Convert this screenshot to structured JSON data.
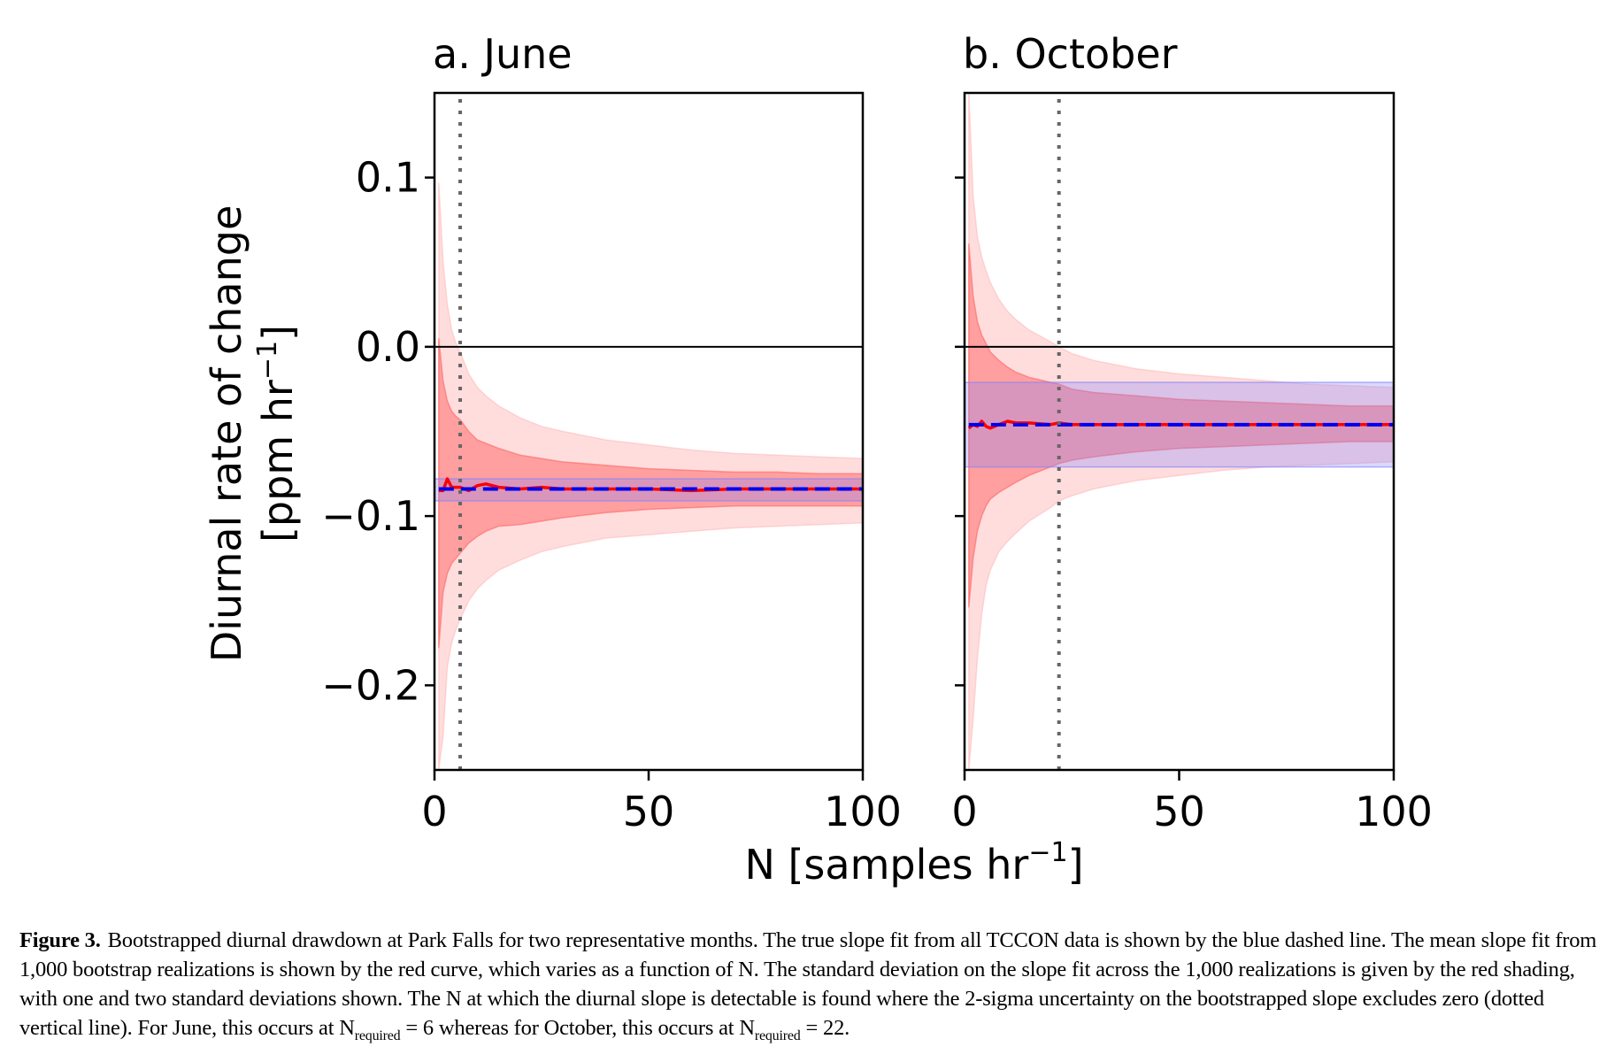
{
  "chart_data": [
    {
      "type": "line",
      "title": "a. June",
      "xlabel": "N [samples hr⁻¹]",
      "ylabel": "Diurnal rate of change [ppm hr⁻¹]",
      "xlim": [
        0,
        100
      ],
      "ylim": [
        -0.25,
        0.15
      ],
      "xticks": [
        0,
        50,
        100
      ],
      "yticks": [
        0.1,
        0.0,
        -0.1,
        -0.2
      ],
      "ytick_labels": [
        "0.1",
        "0.0",
        "−0.1",
        "−0.2"
      ],
      "show_ytick_labels": true,
      "zero_line": 0.0,
      "n_required": 6,
      "true_slope": -0.084,
      "true_slope_band": [
        -0.091,
        -0.078
      ],
      "x": [
        1,
        2,
        3,
        4,
        5,
        6,
        8,
        10,
        12,
        15,
        20,
        25,
        30,
        40,
        50,
        60,
        70,
        80,
        90,
        100
      ],
      "series": [
        {
          "name": "mean bootstrap slope",
          "values": [
            -0.085,
            -0.085,
            -0.078,
            -0.083,
            -0.083,
            -0.083,
            -0.085,
            -0.082,
            -0.081,
            -0.083,
            -0.084,
            -0.083,
            -0.084,
            -0.084,
            -0.084,
            -0.085,
            -0.084,
            -0.084,
            -0.084,
            -0.084
          ]
        },
        {
          "name": "+1 sigma",
          "values": [
            0.005,
            -0.02,
            -0.032,
            -0.038,
            -0.041,
            -0.043,
            -0.05,
            -0.055,
            -0.057,
            -0.06,
            -0.064,
            -0.066,
            -0.068,
            -0.07,
            -0.072,
            -0.073,
            -0.074,
            -0.074,
            -0.075,
            -0.075
          ]
        },
        {
          "name": "-1 sigma",
          "values": [
            -0.178,
            -0.145,
            -0.134,
            -0.128,
            -0.125,
            -0.122,
            -0.116,
            -0.112,
            -0.109,
            -0.106,
            -0.105,
            -0.103,
            -0.101,
            -0.098,
            -0.096,
            -0.095,
            -0.094,
            -0.094,
            -0.094,
            -0.094
          ]
        },
        {
          "name": "+2 sigma",
          "values": [
            0.097,
            0.05,
            0.025,
            0.01,
            0.002,
            -0.003,
            -0.016,
            -0.024,
            -0.029,
            -0.035,
            -0.042,
            -0.047,
            -0.05,
            -0.055,
            -0.058,
            -0.061,
            -0.063,
            -0.064,
            -0.065,
            -0.066
          ]
        },
        {
          "name": "-2 sigma",
          "values": [
            -0.3,
            -0.23,
            -0.189,
            -0.175,
            -0.167,
            -0.161,
            -0.15,
            -0.143,
            -0.138,
            -0.132,
            -0.126,
            -0.121,
            -0.118,
            -0.113,
            -0.111,
            -0.109,
            -0.107,
            -0.106,
            -0.105,
            -0.104
          ]
        }
      ]
    },
    {
      "type": "line",
      "title": "b. October",
      "xlabel": "N [samples hr⁻¹]",
      "ylabel": "",
      "xlim": [
        0,
        100
      ],
      "ylim": [
        -0.25,
        0.15
      ],
      "xticks": [
        0,
        50,
        100
      ],
      "yticks": [
        0.1,
        0.0,
        -0.1,
        -0.2
      ],
      "ytick_labels": [
        "",
        "",
        "",
        ""
      ],
      "show_ytick_labels": false,
      "zero_line": 0.0,
      "n_required": 22,
      "true_slope": -0.046,
      "true_slope_band": [
        -0.071,
        -0.021
      ],
      "x": [
        1,
        2,
        3,
        4,
        5,
        6,
        8,
        10,
        12,
        15,
        20,
        22,
        25,
        30,
        40,
        50,
        60,
        70,
        80,
        90,
        100
      ],
      "series": [
        {
          "name": "mean bootstrap slope",
          "values": [
            -0.048,
            -0.046,
            -0.047,
            -0.044,
            -0.047,
            -0.048,
            -0.046,
            -0.044,
            -0.045,
            -0.045,
            -0.046,
            -0.045,
            -0.046,
            -0.046,
            -0.046,
            -0.046,
            -0.046,
            -0.046,
            -0.046,
            -0.046,
            -0.046
          ]
        },
        {
          "name": "+1 sigma",
          "values": [
            0.061,
            0.03,
            0.015,
            0.007,
            0.002,
            -0.003,
            -0.008,
            -0.012,
            -0.015,
            -0.018,
            -0.021,
            -0.022,
            -0.025,
            -0.027,
            -0.029,
            -0.031,
            -0.032,
            -0.033,
            -0.034,
            -0.035,
            -0.035
          ]
        },
        {
          "name": "-1 sigma",
          "values": [
            -0.154,
            -0.125,
            -0.109,
            -0.1,
            -0.094,
            -0.09,
            -0.086,
            -0.083,
            -0.08,
            -0.076,
            -0.071,
            -0.069,
            -0.067,
            -0.065,
            -0.062,
            -0.06,
            -0.059,
            -0.058,
            -0.057,
            -0.056,
            -0.056
          ]
        },
        {
          "name": "+2 sigma",
          "values": [
            0.2,
            0.089,
            0.065,
            0.053,
            0.045,
            0.038,
            0.028,
            0.021,
            0.016,
            0.01,
            0.003,
            0.0,
            -0.004,
            -0.008,
            -0.013,
            -0.016,
            -0.018,
            -0.02,
            -0.022,
            -0.023,
            -0.024
          ]
        },
        {
          "name": "-2 sigma",
          "values": [
            -0.3,
            -0.22,
            -0.184,
            -0.158,
            -0.141,
            -0.132,
            -0.121,
            -0.115,
            -0.11,
            -0.103,
            -0.095,
            -0.091,
            -0.088,
            -0.084,
            -0.079,
            -0.076,
            -0.073,
            -0.071,
            -0.07,
            -0.069,
            -0.068
          ]
        }
      ]
    }
  ],
  "figure": {
    "shared_xlabel_main": "N [samples hr",
    "shared_xlabel_sup": "−1",
    "shared_xlabel_end": "]",
    "ylabel_line1": "Diurnal rate of change",
    "ylabel_line2_main": "[ppm hr",
    "ylabel_line2_sup": "−1",
    "ylabel_line2_end": "]",
    "colors": {
      "mean_curve": "#ff0000",
      "true_slope": "#0000ee",
      "true_band": "#8080ff",
      "sigma1_fill": "#ff6b6b",
      "sigma2_fill": "#ffb3b3",
      "dotted_line": "#666666",
      "axes": "#000000"
    }
  },
  "caption": {
    "label": "Figure 3.",
    "text_before_1": "Bootstrapped diurnal drawdown at Park Falls for two representative months. The true slope fit from all TCCON data is shown by the blue dashed line. The mean slope fit from 1,000 bootstrap realizations is shown by the red curve, which varies as a function of N. The standard deviation on the slope fit across the 1,000 realizations is given by the red shading, with one and two standard deviations shown. The N at which the diurnal slope is detectable is found where the 2-sigma uncertainty on the bootstrapped slope excludes zero (dotted vertical line). For June, this occurs at N",
    "sub_1": "required",
    "text_between": " = 6 whereas for October, this occurs at N",
    "sub_2": "required",
    "text_end": " = 22."
  }
}
